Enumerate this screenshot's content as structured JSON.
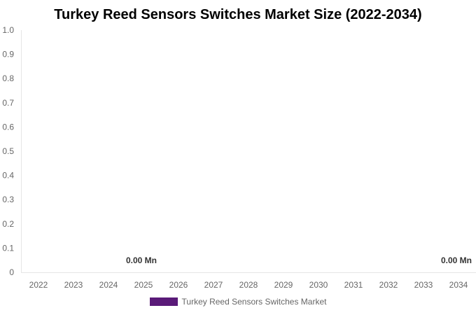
{
  "chart_data": {
    "type": "bar",
    "title": "Turkey Reed Sensors Switches Market Size (2022-2034)",
    "categories": [
      "2022",
      "2023",
      "2024",
      "2025",
      "2026",
      "2027",
      "2028",
      "2029",
      "2030",
      "2031",
      "2032",
      "2033",
      "2034"
    ],
    "series": [
      {
        "name": "Turkey Reed Sensors Switches Market",
        "values": [
          0,
          0,
          0,
          0,
          0,
          0,
          0,
          0,
          0,
          0,
          0,
          0,
          0
        ],
        "color": "#5a1a78"
      }
    ],
    "data_labels": [
      {
        "category": "2025",
        "text": "0.00 Mn"
      },
      {
        "category": "2034",
        "text": "0.00 Mn"
      }
    ],
    "ylim": [
      0,
      1.0
    ],
    "yticks": [
      "0",
      "0.1",
      "0.2",
      "0.3",
      "0.4",
      "0.5",
      "0.6",
      "0.7",
      "0.8",
      "0.9",
      "1.0"
    ],
    "xlabel": "",
    "ylabel": "",
    "grid": false,
    "legend": "bottom"
  }
}
